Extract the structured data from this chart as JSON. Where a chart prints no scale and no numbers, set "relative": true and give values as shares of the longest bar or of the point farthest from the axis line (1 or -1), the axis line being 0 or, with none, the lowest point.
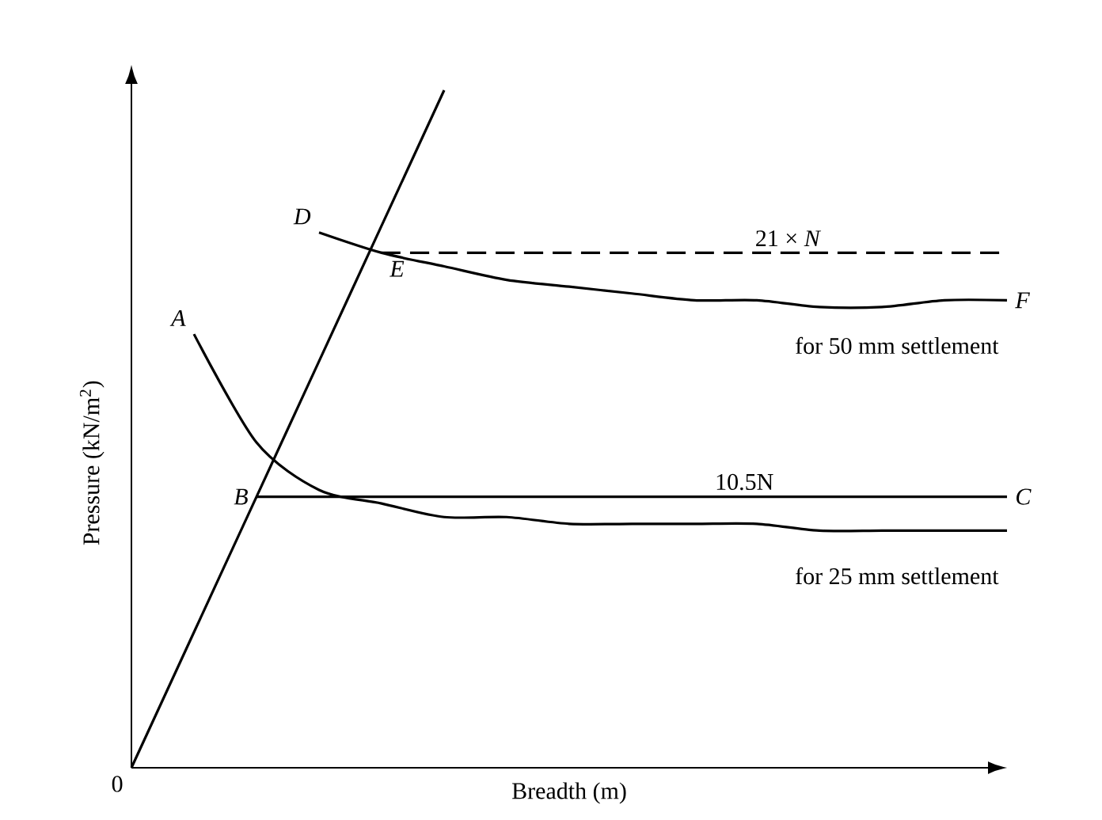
{
  "chart_data": {
    "type": "line",
    "relative": true,
    "xlabel": "Breadth (m)",
    "ylabel": "Pressure (kN/m$^{2}$)",
    "marker": "none",
    "legend": false,
    "categories": [
      null,
      null,
      null,
      null,
      null,
      null,
      null,
      null,
      null,
      null,
      null,
      null,
      null,
      null,
      null
    ],
    "series": [
      {
        "color": "#000000",
        "line_style": "solid",
        "values": [
          0,
          0.2,
          0.4,
          0.6,
          0.8,
          1.0,
          null,
          null,
          null,
          null,
          null,
          null,
          null,
          null,
          null
        ]
      },
      {
        "color": "#000000",
        "line_style": "solid",
        "values": [
          null,
          null,
          null,
          0.79,
          0.76,
          0.74,
          0.72,
          0.71,
          0.7,
          0.69,
          0.69,
          0.68,
          0.68,
          0.69,
          0.69
        ]
      },
      {
        "color": "#000000",
        "line_style": "solid",
        "values": [
          null,
          0.64,
          0.48,
          0.41,
          0.39,
          0.37,
          0.37,
          0.36,
          0.36,
          0.36,
          0.36,
          0.35,
          0.35,
          0.35,
          0.35
        ]
      },
      {
        "name": "21 × *N*",
        "color": "#000000",
        "line_style": "dashed",
        "values": [
          null,
          null,
          null,
          null,
          0.76,
          0.76,
          0.76,
          0.76,
          0.76,
          0.76,
          0.76,
          0.76,
          0.76,
          0.76,
          0.76
        ]
      },
      {
        "name": "10.5N",
        "color": "#000000",
        "line_style": "solid",
        "values": [
          null,
          null,
          0.4,
          0.4,
          0.4,
          0.4,
          0.4,
          0.4,
          0.4,
          0.4,
          0.4,
          0.4,
          0.4,
          0.4,
          0.4
        ]
      }
    ],
    "annotations": [
      "A",
      "B",
      "C",
      "D",
      "E",
      "F",
      "for 50 mm settlement",
      "for 25 mm settlement",
      "0"
    ]
  }
}
